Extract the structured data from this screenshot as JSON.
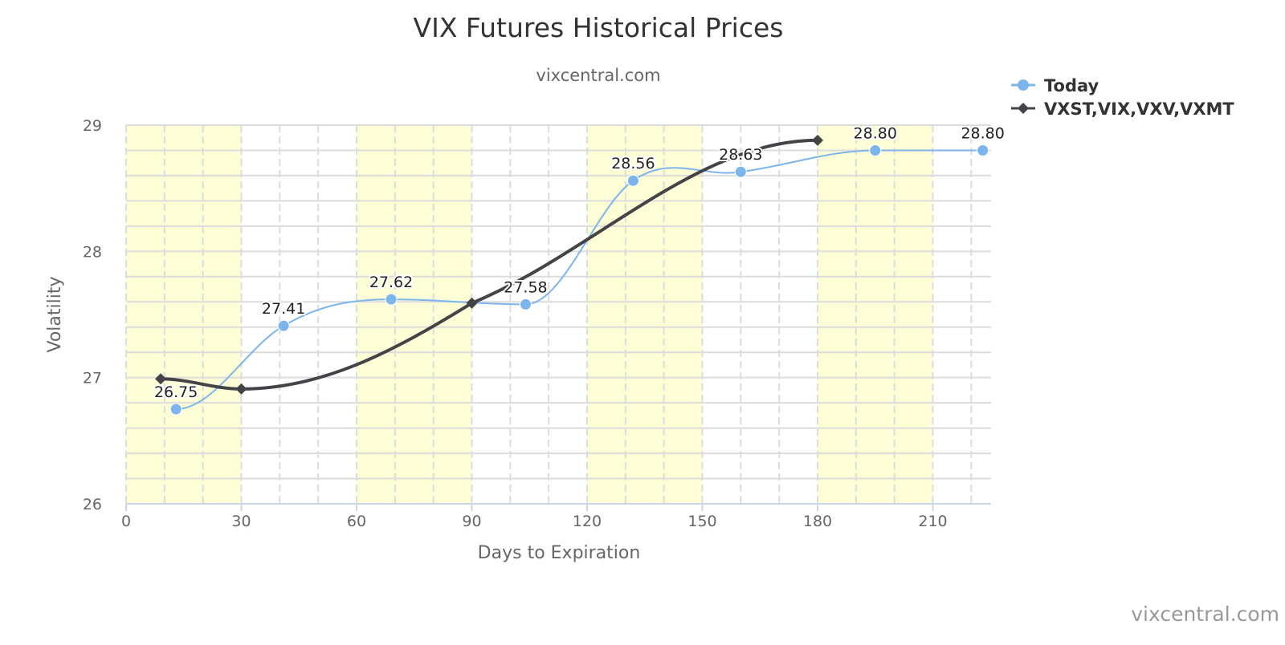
{
  "chart_data": {
    "type": "line",
    "title": "VIX Futures Historical Prices",
    "subtitle": "vixcentral.com",
    "xlabel": "Days to Expiration",
    "ylabel": "Volatility",
    "xlim": [
      0,
      225
    ],
    "ylim": [
      26,
      29
    ],
    "x_ticks": [
      0,
      30,
      60,
      90,
      120,
      150,
      180,
      210
    ],
    "y_ticks": [
      26,
      27,
      28,
      29
    ],
    "grid": true,
    "shaded_bands": [
      [
        0,
        30
      ],
      [
        60,
        90
      ],
      [
        120,
        150
      ],
      [
        180,
        210
      ]
    ],
    "band_color": "#fefed6",
    "legend_position": "top-right",
    "credit": "vixcentral.com",
    "series": [
      {
        "name": "Today",
        "color": "#7cb5ec",
        "marker": "circle",
        "smooth": true,
        "x": [
          13,
          41,
          69,
          104,
          132,
          160,
          195,
          223
        ],
        "y": [
          26.75,
          27.41,
          27.62,
          27.58,
          28.56,
          28.63,
          28.8,
          28.8
        ],
        "labels": [
          "26.75",
          "27.41",
          "27.62",
          "27.58",
          "28.56",
          "28.63",
          "28.80",
          "28.80"
        ]
      },
      {
        "name": "VXST,VIX,VXV,VXMT",
        "color": "#434348",
        "marker": "diamond",
        "smooth": true,
        "x": [
          9,
          30,
          90,
          180
        ],
        "y": [
          26.99,
          26.91,
          27.59,
          28.88
        ],
        "labels": []
      }
    ]
  }
}
